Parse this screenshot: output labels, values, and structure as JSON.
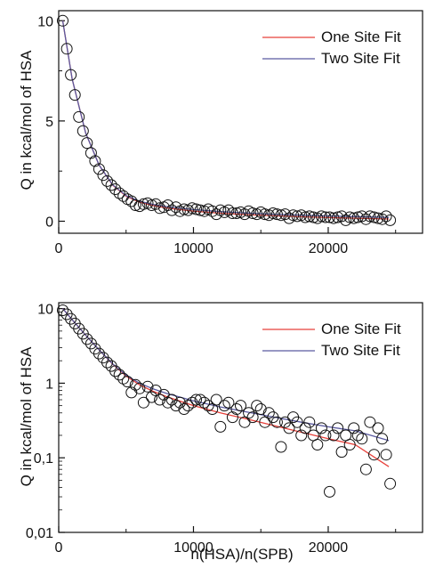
{
  "chart_data": [
    {
      "type": "scatter",
      "ylabel": "Q in kcal/mol of HSA",
      "xlabel": "",
      "xlim": [
        0,
        27000
      ],
      "ylim": [
        -0.6,
        10.5
      ],
      "yscale": "linear",
      "xticks": [
        {
          "v": 0,
          "label": "0"
        },
        {
          "v": 10000,
          "label": "10000"
        },
        {
          "v": 20000,
          "label": "20000"
        }
      ],
      "yticks": [
        {
          "v": 0,
          "label": "0"
        },
        {
          "v": 5,
          "label": "5"
        },
        {
          "v": 10,
          "label": "10"
        }
      ],
      "grid": false,
      "legend_position": "top-right",
      "series": [
        {
          "name": "One Site Fit",
          "color": "#e8403a",
          "kind": "line",
          "x": [
            300,
            1000,
            2000,
            3000,
            4000,
            5000,
            6000,
            7000,
            8000,
            10000,
            12000,
            14000,
            16000,
            18000,
            20000,
            22000,
            24500
          ],
          "y": [
            10,
            7.1,
            4.4,
            2.8,
            1.8,
            1.25,
            0.95,
            0.78,
            0.66,
            0.5,
            0.4,
            0.33,
            0.27,
            0.22,
            0.18,
            0.15,
            0.11
          ]
        },
        {
          "name": "Two Site Fit",
          "color": "#5a5aa0",
          "kind": "line",
          "x": [
            300,
            1000,
            2000,
            3000,
            4000,
            5000,
            6000,
            7000,
            8000,
            10000,
            12000,
            14000,
            16000,
            18000,
            20000,
            22000,
            24500
          ],
          "y": [
            10,
            7.1,
            4.4,
            2.8,
            1.82,
            1.28,
            1.0,
            0.84,
            0.73,
            0.58,
            0.48,
            0.41,
            0.35,
            0.3,
            0.26,
            0.23,
            0.19
          ]
        },
        {
          "name": "",
          "kind": "points",
          "x": [
            300,
            600,
            900,
            1200,
            1500,
            1800,
            2100,
            2400,
            2700,
            3000,
            3300,
            3600,
            3900,
            4200,
            4500,
            4800,
            5100,
            5400,
            5700,
            6000,
            6300,
            6600,
            6900,
            7200,
            7500,
            7800,
            8100,
            8400,
            8700,
            9000,
            9300,
            9600,
            9900,
            10200,
            10500,
            10800,
            11100,
            11400,
            11700,
            12000,
            12300,
            12600,
            12900,
            13200,
            13500,
            13800,
            14100,
            14400,
            14700,
            15000,
            15300,
            15600,
            15900,
            16200,
            16500,
            16800,
            17100,
            17400,
            17700,
            18000,
            18300,
            18600,
            18900,
            19200,
            19500,
            19800,
            20100,
            20400,
            20700,
            21000,
            21300,
            21600,
            21900,
            22200,
            22500,
            22800,
            23100,
            23400,
            23700,
            24000,
            24300,
            24600
          ],
          "y": [
            10,
            8.6,
            7.3,
            6.3,
            5.2,
            4.5,
            3.9,
            3.4,
            3.0,
            2.6,
            2.3,
            2.0,
            1.8,
            1.6,
            1.4,
            1.25,
            1.1,
            1.0,
            0.8,
            0.75,
            0.85,
            0.9,
            0.8,
            0.85,
            0.65,
            0.7,
            0.8,
            0.55,
            0.7,
            0.5,
            0.6,
            0.55,
            0.65,
            0.6,
            0.55,
            0.5,
            0.6,
            0.5,
            0.35,
            0.55,
            0.45,
            0.55,
            0.4,
            0.4,
            0.45,
            0.35,
            0.5,
            0.4,
            0.35,
            0.45,
            0.35,
            0.3,
            0.4,
            0.35,
            0.3,
            0.35,
            0.15,
            0.3,
            0.25,
            0.3,
            0.2,
            0.25,
            0.2,
            0.15,
            0.25,
            0.2,
            0.2,
            0.15,
            0.2,
            0.25,
            0.05,
            0.2,
            0.15,
            0.2,
            0.25,
            0.1,
            0.25,
            0.2,
            0.15,
            0.1,
            0.25,
            0.05
          ]
        }
      ]
    },
    {
      "type": "scatter",
      "ylabel": "Q in kcal/mol of HSA",
      "xlabel": "n(HSA)/n(SPB)",
      "xlim": [
        0,
        27000
      ],
      "ylim": [
        0.01,
        12
      ],
      "yscale": "log",
      "xticks": [
        {
          "v": 0,
          "label": "0"
        },
        {
          "v": 10000,
          "label": "10000"
        },
        {
          "v": 20000,
          "label": "20000"
        }
      ],
      "yticks": [
        {
          "v": 0.01,
          "label": "0,01"
        },
        {
          "v": 0.1,
          "label": "0,1"
        },
        {
          "v": 1,
          "label": "1"
        },
        {
          "v": 10,
          "label": "10"
        }
      ],
      "grid": false,
      "legend_position": "top-right",
      "series": [
        {
          "name": "One Site Fit",
          "color": "#e8403a",
          "kind": "line",
          "x": [
            300,
            1000,
            2000,
            3000,
            4000,
            5000,
            6000,
            7000,
            8000,
            10000,
            12000,
            14000,
            16000,
            18000,
            20000,
            22000,
            24500
          ],
          "y": [
            10,
            7.1,
            4.4,
            2.8,
            1.8,
            1.25,
            0.95,
            0.78,
            0.66,
            0.5,
            0.4,
            0.33,
            0.27,
            0.22,
            0.18,
            0.15,
            0.076
          ]
        },
        {
          "name": "Two Site Fit",
          "color": "#5a5aa0",
          "kind": "line",
          "x": [
            300,
            1000,
            2000,
            3000,
            4000,
            5000,
            6000,
            7000,
            8000,
            10000,
            12000,
            14000,
            16000,
            18000,
            20000,
            22000,
            24500
          ],
          "y": [
            10,
            7.1,
            4.4,
            2.8,
            1.82,
            1.28,
            1.0,
            0.84,
            0.73,
            0.58,
            0.48,
            0.41,
            0.35,
            0.3,
            0.26,
            0.23,
            0.17
          ]
        },
        {
          "name": "",
          "kind": "points",
          "x": [
            300,
            600,
            900,
            1200,
            1500,
            1800,
            2100,
            2400,
            2700,
            3000,
            3300,
            3600,
            3900,
            4200,
            4500,
            4800,
            5100,
            5400,
            5700,
            6000,
            6300,
            6600,
            6900,
            7200,
            7500,
            7800,
            8100,
            8400,
            8700,
            9000,
            9300,
            9600,
            9900,
            10200,
            10500,
            10800,
            11100,
            11400,
            11700,
            12000,
            12300,
            12600,
            12900,
            13200,
            13500,
            13800,
            14100,
            14400,
            14700,
            15000,
            15300,
            15600,
            15900,
            16200,
            16500,
            16800,
            17100,
            17400,
            17700,
            18000,
            18300,
            18600,
            18900,
            19200,
            19500,
            19800,
            20100,
            20400,
            20700,
            21000,
            21300,
            21600,
            21900,
            22200,
            22500,
            22800,
            23100,
            23400,
            23700,
            24000,
            24300,
            24600
          ],
          "y": [
            9.5,
            8.4,
            7.3,
            6.3,
            5.4,
            4.6,
            3.9,
            3.4,
            2.9,
            2.5,
            2.2,
            1.9,
            1.7,
            1.45,
            1.3,
            1.15,
            1.05,
            0.75,
            0.95,
            0.85,
            0.55,
            0.9,
            0.65,
            0.8,
            0.6,
            0.7,
            0.55,
            0.6,
            0.5,
            0.55,
            0.45,
            0.5,
            0.55,
            0.6,
            0.6,
            0.55,
            0.5,
            0.45,
            0.6,
            0.26,
            0.5,
            0.55,
            0.35,
            0.45,
            0.5,
            0.3,
            0.4,
            0.35,
            0.5,
            0.45,
            0.3,
            0.4,
            0.35,
            0.3,
            0.14,
            0.3,
            0.25,
            0.35,
            0.3,
            0.2,
            0.25,
            0.3,
            0.2,
            0.15,
            0.25,
            0.2,
            0.035,
            0.2,
            0.25,
            0.12,
            0.2,
            0.15,
            0.25,
            0.2,
            0.18,
            0.07,
            0.3,
            0.11,
            0.25,
            0.18,
            0.11,
            0.045
          ]
        }
      ]
    }
  ]
}
